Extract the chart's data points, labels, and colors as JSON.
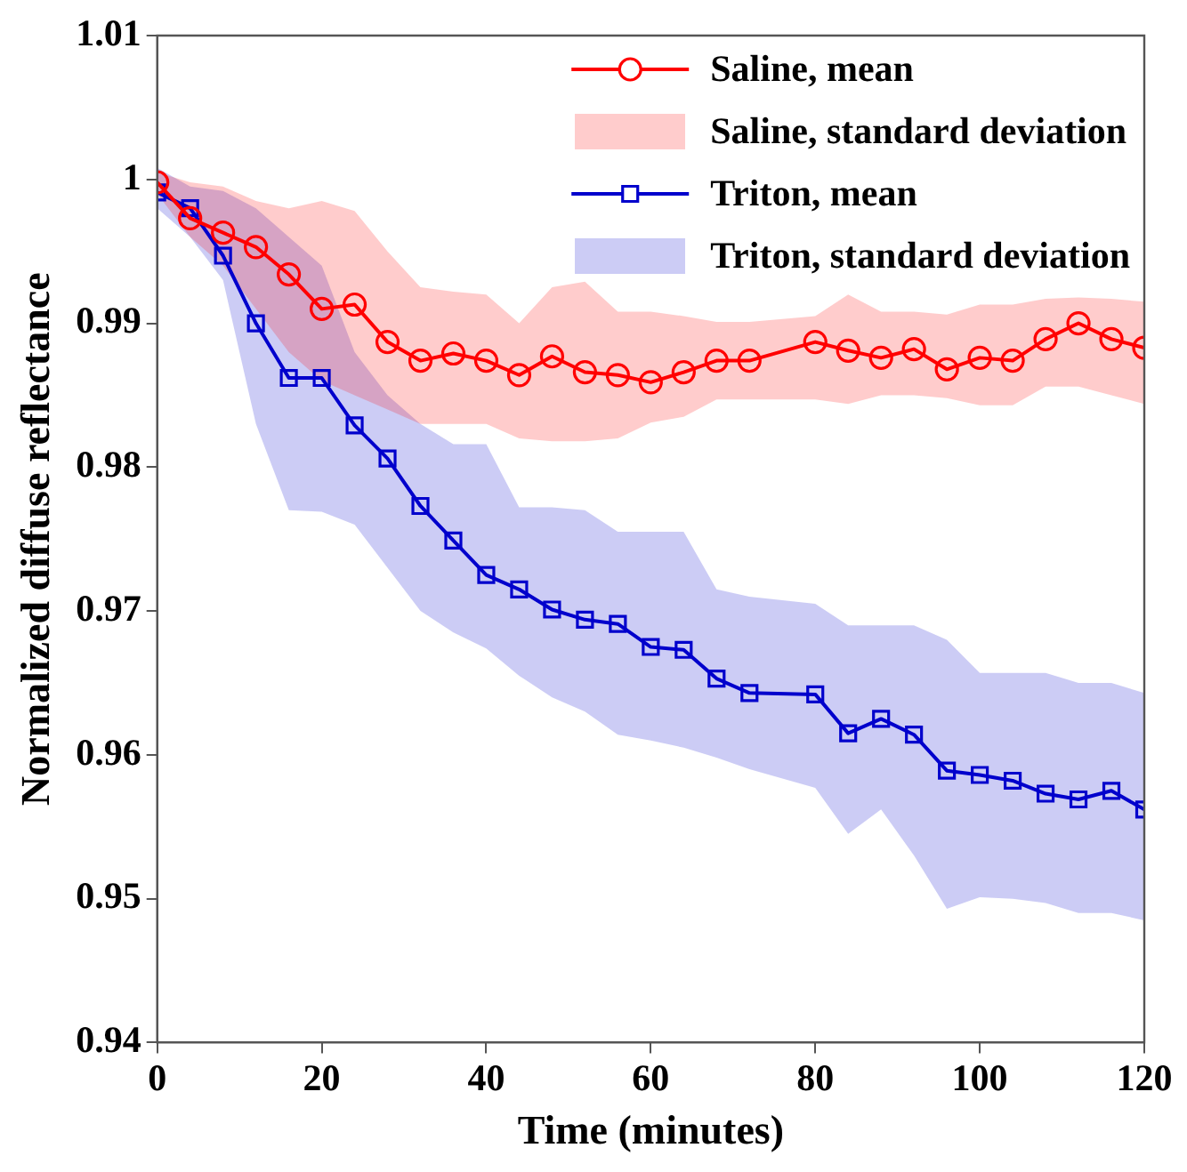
{
  "chart_data": {
    "type": "line",
    "xlabel": "Time (minutes)",
    "ylabel": "Normalized diffuse reflectance",
    "x": [
      0,
      4,
      8,
      12,
      16,
      20,
      24,
      28,
      32,
      36,
      40,
      44,
      48,
      52,
      56,
      60,
      64,
      68,
      72,
      80,
      84,
      88,
      92,
      96,
      100,
      104,
      108,
      112,
      116,
      120
    ],
    "xlim": [
      0,
      120
    ],
    "xticks": [
      0,
      20,
      40,
      60,
      80,
      100,
      120
    ],
    "ylim": [
      0.94,
      1.01
    ],
    "yticks": [
      0.94,
      0.95,
      0.96,
      0.97,
      0.98,
      0.99,
      1,
      1.01
    ],
    "grid": false,
    "legend": "top right",
    "annotations": [
      "Saline, standard deviation",
      "Triton, standard deviation"
    ],
    "series": [
      {
        "name": "Saline, mean",
        "color": "#ff0000",
        "marker": "circle",
        "values": [
          0.9998,
          0.9973,
          0.9963,
          0.9953,
          0.9934,
          0.991,
          0.9913,
          0.9887,
          0.9874,
          0.9879,
          0.9874,
          0.9864,
          0.9877,
          0.9866,
          0.9864,
          0.9859,
          0.9866,
          0.9874,
          0.9874,
          0.9887,
          0.9881,
          0.9876,
          0.9882,
          0.9868,
          0.9876,
          0.9874,
          0.9889,
          0.99,
          0.9889,
          0.9883
        ],
        "upper": [
          1.0005,
          0.9998,
          0.9995,
          0.9985,
          0.998,
          0.9985,
          0.9978,
          0.995,
          0.9925,
          0.9922,
          0.992,
          0.99,
          0.9925,
          0.9929,
          0.9908,
          0.9908,
          0.9905,
          0.9901,
          0.9901,
          0.9905,
          0.992,
          0.9908,
          0.9908,
          0.9906,
          0.9913,
          0.9913,
          0.9917,
          0.9918,
          0.9917,
          0.9915
        ],
        "lower": [
          0.999,
          0.996,
          0.994,
          0.991,
          0.988,
          0.986,
          0.985,
          0.984,
          0.983,
          0.983,
          0.983,
          0.982,
          0.9818,
          0.9818,
          0.982,
          0.9831,
          0.9835,
          0.9847,
          0.9847,
          0.9847,
          0.9844,
          0.985,
          0.985,
          0.9848,
          0.9843,
          0.9843,
          0.9856,
          0.9856,
          0.985,
          0.9844
        ]
      },
      {
        "name": "Triton, mean",
        "color": "#0000cc",
        "marker": "square",
        "values": [
          0.9991,
          0.998,
          0.9947,
          0.99,
          0.9862,
          0.9862,
          0.9829,
          0.9806,
          0.9773,
          0.9749,
          0.9725,
          0.9715,
          0.9701,
          0.9694,
          0.9691,
          0.9675,
          0.9673,
          0.9653,
          0.9643,
          0.9642,
          0.9615,
          0.9625,
          0.9614,
          0.9589,
          0.9586,
          0.9582,
          0.9573,
          0.9569,
          0.9575,
          0.9562
        ],
        "upper": [
          1.0008,
          0.9995,
          0.9992,
          0.998,
          0.996,
          0.994,
          0.988,
          0.985,
          0.983,
          0.9816,
          0.9816,
          0.9772,
          0.9772,
          0.977,
          0.9755,
          0.9755,
          0.9755,
          0.9715,
          0.971,
          0.9705,
          0.969,
          0.969,
          0.969,
          0.968,
          0.9657,
          0.9657,
          0.9657,
          0.965,
          0.965,
          0.9643
        ],
        "lower": [
          0.998,
          0.996,
          0.993,
          0.983,
          0.977,
          0.9769,
          0.976,
          0.973,
          0.97,
          0.9685,
          0.9674,
          0.9655,
          0.964,
          0.963,
          0.9614,
          0.961,
          0.9605,
          0.9598,
          0.959,
          0.9577,
          0.9545,
          0.9562,
          0.953,
          0.9493,
          0.9501,
          0.95,
          0.9497,
          0.949,
          0.949,
          0.9485
        ]
      }
    ]
  }
}
